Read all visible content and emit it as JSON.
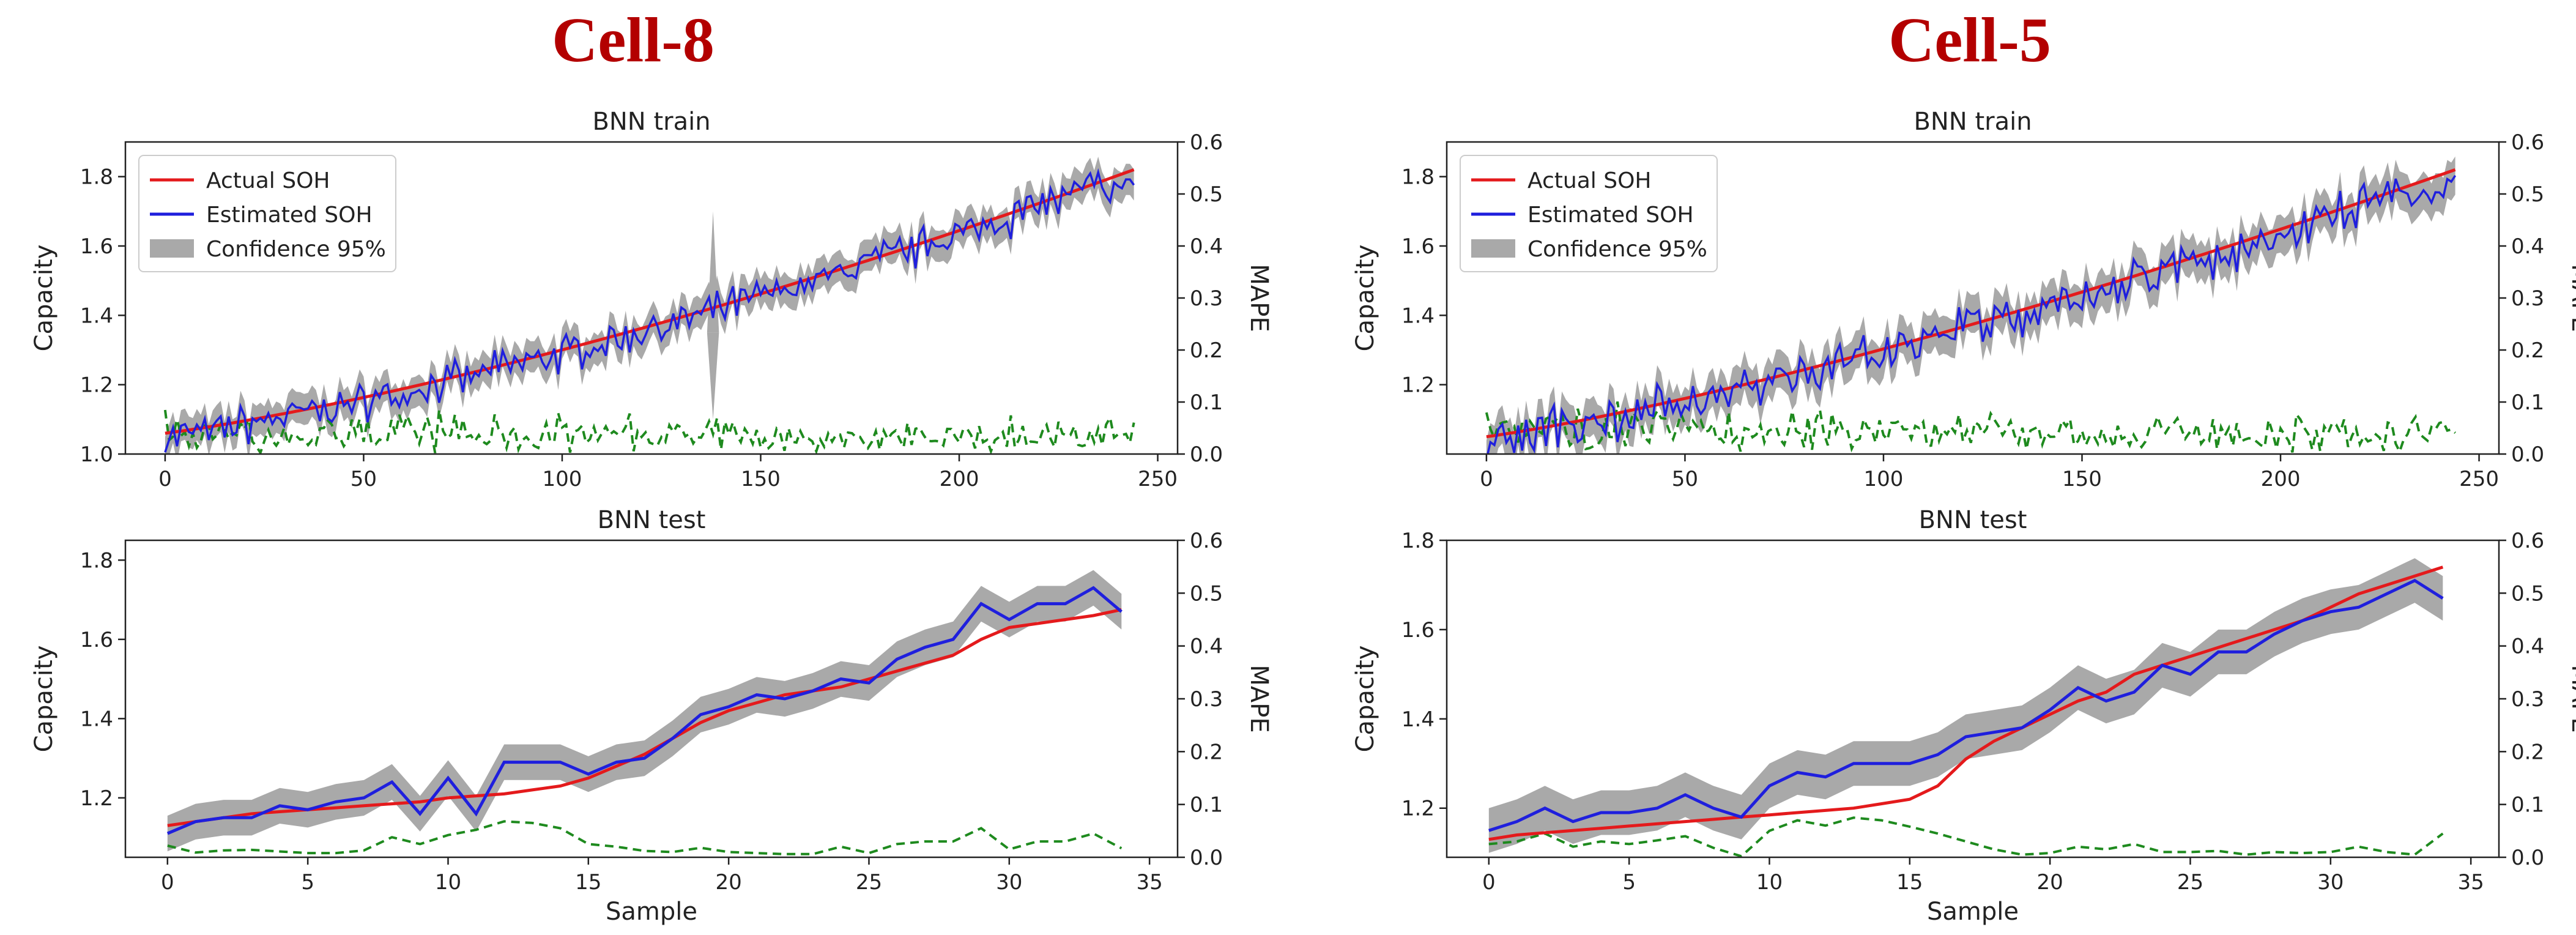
{
  "colors": {
    "actual": "#e41a1c",
    "estimated": "#1f1fdd",
    "confidence": "#a9a9a9",
    "mape": "#1e8a1e",
    "title": "#b30000"
  },
  "chart_data": [
    {
      "cell": "Cell-8",
      "type": "line",
      "title": "BNN train",
      "xlabel": "",
      "ylabel": "Capacity",
      "y2label": "MAPE",
      "xlim": [
        -10,
        255
      ],
      "ylim": [
        1.0,
        1.9
      ],
      "y2lim": [
        0,
        0.6
      ],
      "xticks": [
        0,
        50,
        100,
        150,
        200,
        250
      ],
      "yticks": [
        1.0,
        1.2,
        1.4,
        1.6,
        1.8
      ],
      "y2ticks": [
        0.0,
        0.1,
        0.2,
        0.3,
        0.4,
        0.5,
        0.6
      ],
      "legend": [
        "Actual SOH",
        "Estimated SOH",
        "Confidence 95%"
      ],
      "n": 245,
      "actual_start": 1.06,
      "actual_end": 1.82,
      "curve": 1.6,
      "noise": 0.05,
      "band": 0.045,
      "mape_max": 0.075,
      "seed": 7,
      "spikes": [
        {
          "x": 138,
          "value": 1.7
        },
        {
          "x": 138,
          "value": 1.1
        }
      ]
    },
    {
      "cell": "Cell-8",
      "type": "line",
      "title": "BNN test",
      "xlabel": "Sample",
      "ylabel": "Capacity",
      "y2label": "MAPE",
      "xlim": [
        -1.5,
        36
      ],
      "ylim": [
        1.05,
        1.85
      ],
      "y2lim": [
        0,
        0.6
      ],
      "xticks": [
        0,
        5,
        10,
        15,
        20,
        25,
        30,
        35
      ],
      "yticks": [
        1.2,
        1.4,
        1.6,
        1.8
      ],
      "y2ticks": [
        0.0,
        0.1,
        0.2,
        0.3,
        0.4,
        0.5,
        0.6
      ],
      "x": [
        0,
        1,
        2,
        3,
        4,
        5,
        6,
        7,
        8,
        9,
        10,
        11,
        12,
        13,
        14,
        15,
        16,
        17,
        18,
        19,
        20,
        21,
        22,
        23,
        24,
        25,
        26,
        27,
        28,
        29,
        30,
        31,
        32,
        33,
        34
      ],
      "actual": [
        1.13,
        1.14,
        1.15,
        1.16,
        1.165,
        1.17,
        1.175,
        1.18,
        1.185,
        1.19,
        1.2,
        1.205,
        1.21,
        1.22,
        1.23,
        1.25,
        1.28,
        1.31,
        1.35,
        1.39,
        1.42,
        1.44,
        1.46,
        1.47,
        1.48,
        1.5,
        1.52,
        1.54,
        1.56,
        1.6,
        1.63,
        1.64,
        1.65,
        1.66,
        1.675
      ],
      "estimated": [
        1.11,
        1.14,
        1.15,
        1.15,
        1.18,
        1.17,
        1.19,
        1.2,
        1.24,
        1.16,
        1.25,
        1.16,
        1.29,
        1.29,
        1.29,
        1.26,
        1.29,
        1.3,
        1.35,
        1.41,
        1.43,
        1.46,
        1.45,
        1.47,
        1.5,
        1.49,
        1.55,
        1.58,
        1.6,
        1.69,
        1.65,
        1.69,
        1.69,
        1.73,
        1.67
      ],
      "mape": [
        0.022,
        0.009,
        0.013,
        0.014,
        0.011,
        0.008,
        0.008,
        0.013,
        0.038,
        0.025,
        0.042,
        0.052,
        0.068,
        0.065,
        0.055,
        0.025,
        0.02,
        0.012,
        0.01,
        0.018,
        0.01,
        0.008,
        0.006,
        0.006,
        0.02,
        0.008,
        0.025,
        0.03,
        0.03,
        0.055,
        0.015,
        0.03,
        0.03,
        0.045,
        0.017
      ],
      "band": 0.045
    },
    {
      "cell": "Cell-5",
      "type": "line",
      "title": "BNN train",
      "xlabel": "",
      "ylabel": "Capacity",
      "y2label": "MAPE",
      "xlim": [
        -10,
        255
      ],
      "ylim": [
        1.0,
        1.9
      ],
      "y2lim": [
        0,
        0.6
      ],
      "xticks": [
        0,
        50,
        100,
        150,
        200,
        250
      ],
      "yticks": [
        1.2,
        1.4,
        1.6,
        1.8
      ],
      "y2ticks": [
        0.0,
        0.1,
        0.2,
        0.3,
        0.4,
        0.5,
        0.6
      ],
      "legend": [
        "Actual SOH",
        "Estimated SOH",
        "Confidence 95%"
      ],
      "n": 245,
      "actual_start": 1.05,
      "actual_end": 1.82,
      "curve": 1.5,
      "noise": 0.06,
      "band": 0.055,
      "mape_max": 0.085,
      "seed": 19,
      "spikes": []
    },
    {
      "cell": "Cell-5",
      "type": "line",
      "title": "BNN test",
      "xlabel": "Sample",
      "ylabel": "Capacity",
      "y2label": "MAPE",
      "xlim": [
        -1.5,
        36
      ],
      "ylim": [
        1.09,
        1.8
      ],
      "y2lim": [
        0,
        0.6
      ],
      "xticks": [
        0,
        5,
        10,
        15,
        20,
        25,
        30,
        35
      ],
      "yticks": [
        1.2,
        1.4,
        1.6,
        1.8
      ],
      "y2ticks": [
        0.0,
        0.1,
        0.2,
        0.3,
        0.4,
        0.5,
        0.6
      ],
      "x": [
        0,
        1,
        2,
        3,
        4,
        5,
        6,
        7,
        8,
        9,
        10,
        11,
        12,
        13,
        14,
        15,
        16,
        17,
        18,
        19,
        20,
        21,
        22,
        23,
        24,
        25,
        26,
        27,
        28,
        29,
        30,
        31,
        32,
        33,
        34
      ],
      "actual": [
        1.13,
        1.14,
        1.145,
        1.15,
        1.155,
        1.16,
        1.165,
        1.17,
        1.175,
        1.18,
        1.185,
        1.19,
        1.195,
        1.2,
        1.21,
        1.22,
        1.25,
        1.31,
        1.35,
        1.38,
        1.41,
        1.44,
        1.46,
        1.5,
        1.52,
        1.54,
        1.56,
        1.58,
        1.6,
        1.62,
        1.65,
        1.68,
        1.7,
        1.72,
        1.74
      ],
      "estimated": [
        1.15,
        1.17,
        1.2,
        1.17,
        1.19,
        1.19,
        1.2,
        1.23,
        1.2,
        1.18,
        1.25,
        1.28,
        1.27,
        1.3,
        1.3,
        1.3,
        1.32,
        1.36,
        1.37,
        1.38,
        1.42,
        1.47,
        1.44,
        1.46,
        1.52,
        1.5,
        1.55,
        1.55,
        1.59,
        1.62,
        1.64,
        1.65,
        1.68,
        1.71,
        1.67
      ],
      "mape": [
        0.025,
        0.03,
        0.045,
        0.02,
        0.03,
        0.025,
        0.032,
        0.04,
        0.018,
        0.002,
        0.05,
        0.07,
        0.06,
        0.075,
        0.07,
        0.058,
        0.045,
        0.03,
        0.015,
        0.005,
        0.008,
        0.02,
        0.015,
        0.025,
        0.01,
        0.01,
        0.012,
        0.005,
        0.01,
        0.008,
        0.01,
        0.02,
        0.01,
        0.005,
        0.045
      ],
      "band": 0.05
    }
  ]
}
